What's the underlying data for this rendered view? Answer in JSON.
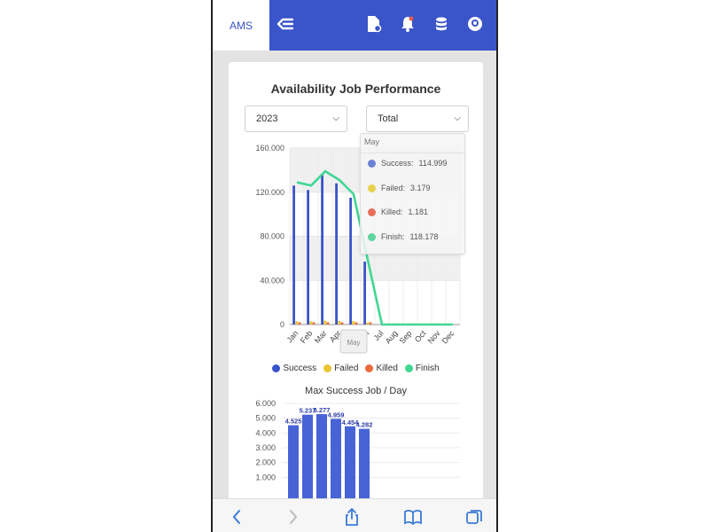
{
  "app": {
    "brand": "AMS"
  },
  "colors": {
    "brand": "#3a54c9",
    "success": "#3a54c9",
    "failed": "#e8c531",
    "killed": "#ea6a3e",
    "finish": "#3fd791"
  },
  "icons": {
    "menu_collapse": "arrow-left-lines-icon",
    "report": "file-settings-icon",
    "alerts": "bell-icon",
    "database": "database-icon",
    "user": "user-avatar-icon"
  },
  "card": {
    "title": "Availability Job Performance",
    "year_select": "2023",
    "type_select": "Total"
  },
  "tooltip": {
    "month": "May",
    "rows": [
      {
        "label": "Success:",
        "value": "114.999"
      },
      {
        "label": "Failed:",
        "value": "3.179"
      },
      {
        "label": "Killed:",
        "value": "1.181"
      },
      {
        "label": "Finish:",
        "value": "118.178"
      }
    ]
  },
  "axis_pointer_label": "May",
  "legend": [
    "Success",
    "Failed",
    "Killed",
    "Finish"
  ],
  "chart_data": [
    {
      "type": "bar",
      "categories": [
        "Jan",
        "Feb",
        "Mar",
        "Apr",
        "May",
        "Jun",
        "Jul",
        "Aug",
        "Sep",
        "Oct",
        "Nov",
        "Dec"
      ],
      "y_ticks": [
        "160.000",
        "120.000",
        "80.000",
        "40.000",
        "0"
      ],
      "ylim": [
        0,
        160000
      ],
      "series": [
        {
          "name": "Success",
          "kind": "bar",
          "values": [
            126000,
            122000,
            136000,
            128000,
            114999,
            57000,
            0,
            0,
            0,
            0,
            0,
            0
          ]
        },
        {
          "name": "Failed",
          "kind": "bar",
          "values": [
            3000,
            2800,
            3500,
            3200,
            3179,
            1500,
            0,
            0,
            0,
            0,
            0,
            0
          ]
        },
        {
          "name": "Killed",
          "kind": "bar",
          "values": [
            1200,
            1100,
            1300,
            1200,
            1181,
            600,
            0,
            0,
            0,
            0,
            0,
            0
          ]
        },
        {
          "name": "Finish",
          "kind": "line",
          "values": [
            129000,
            126000,
            139000,
            131000,
            118178,
            58500,
            0,
            0,
            0,
            0,
            0,
            0
          ]
        }
      ]
    },
    {
      "type": "bar",
      "title": "Max Success Job / Day",
      "y_ticks": [
        "6.000",
        "5.000",
        "4.000",
        "3.000",
        "2.000",
        "1.000"
      ],
      "ylim": [
        0,
        6000
      ],
      "values": [
        4525,
        5237,
        5277,
        4959,
        4454,
        4282
      ],
      "labels": [
        "4.525",
        "5.237",
        "5.277",
        "4.959",
        "4.454",
        "4.282"
      ]
    }
  ],
  "bottom_nav": {
    "back": "chevron-left-icon",
    "forward": "chevron-right-icon",
    "share": "share-icon",
    "bookmarks": "book-icon",
    "tabs": "tabs-icon"
  }
}
